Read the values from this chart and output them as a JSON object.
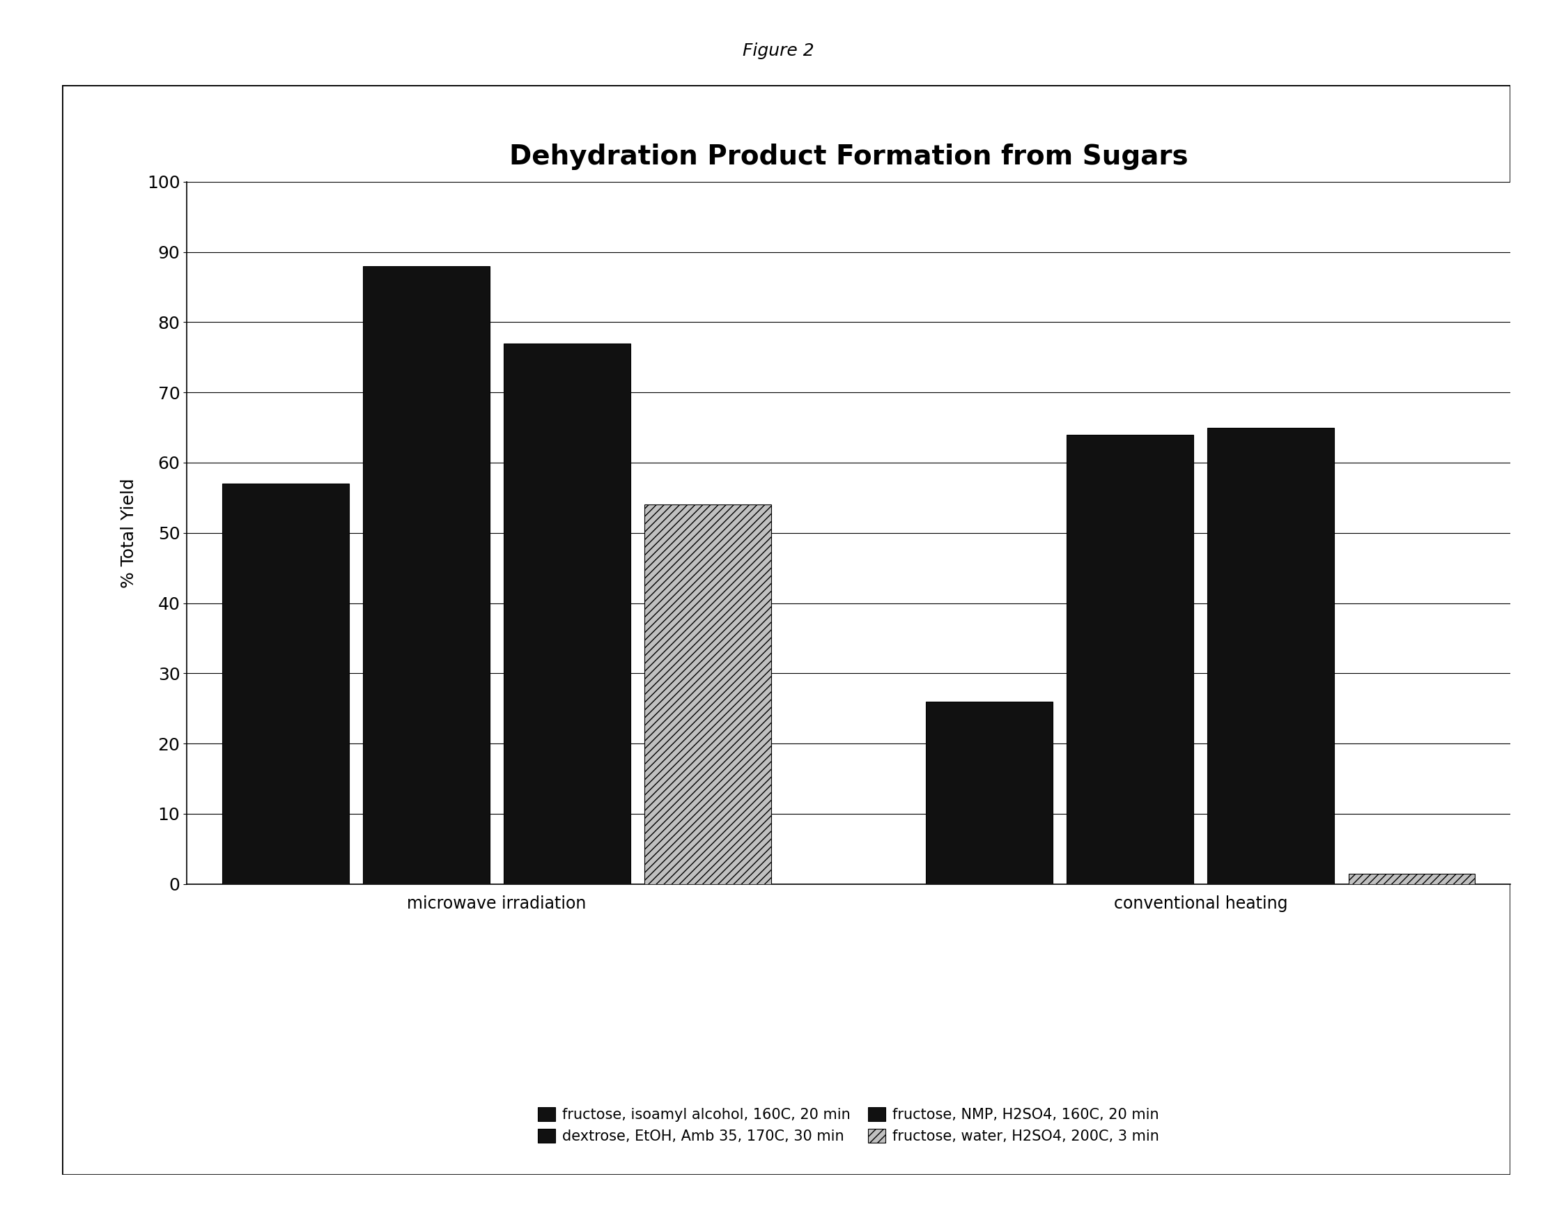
{
  "title": "Dehydration Product Formation from Sugars",
  "figure_label": "Figure 2",
  "ylabel": "% Total Yield",
  "ylim": [
    0,
    100
  ],
  "yticks": [
    0,
    10,
    20,
    30,
    40,
    50,
    60,
    70,
    80,
    90,
    100
  ],
  "groups": [
    "microwave irradiation",
    "conventional heating"
  ],
  "bar_series": [
    {
      "name": "fructose, isoamyl alcohol, 160C, 20 min",
      "values": [
        57,
        null
      ],
      "color": "#111111",
      "hatch": null
    },
    {
      "name": "fructose, NMP, H2SO4, 160C, 20 min",
      "values": [
        88,
        null
      ],
      "color": "#111111",
      "hatch": null
    },
    {
      "name": "fructose_nmp_bar3",
      "values": [
        77,
        null
      ],
      "color": "#111111",
      "hatch": null
    },
    {
      "name": "fructose, water, H2SO4, 200C, 3 min",
      "values": [
        54,
        1.5
      ],
      "color": "#bbbbbb",
      "hatch": "///"
    },
    {
      "name": "dextrose, EtOH, Amb 35, 170C, 30 min",
      "values": [
        null,
        26
      ],
      "color": "#111111",
      "hatch": null
    },
    {
      "name": "dextrose_bar2",
      "values": [
        null,
        64
      ],
      "color": "#111111",
      "hatch": null
    },
    {
      "name": "dextrose_bar3",
      "values": [
        null,
        65
      ],
      "color": "#111111",
      "hatch": null
    }
  ],
  "background_color": "#ffffff",
  "title_fontsize": 28,
  "axis_fontsize": 18,
  "tick_fontsize": 18,
  "legend_fontsize": 15,
  "group_label_fontsize": 17
}
